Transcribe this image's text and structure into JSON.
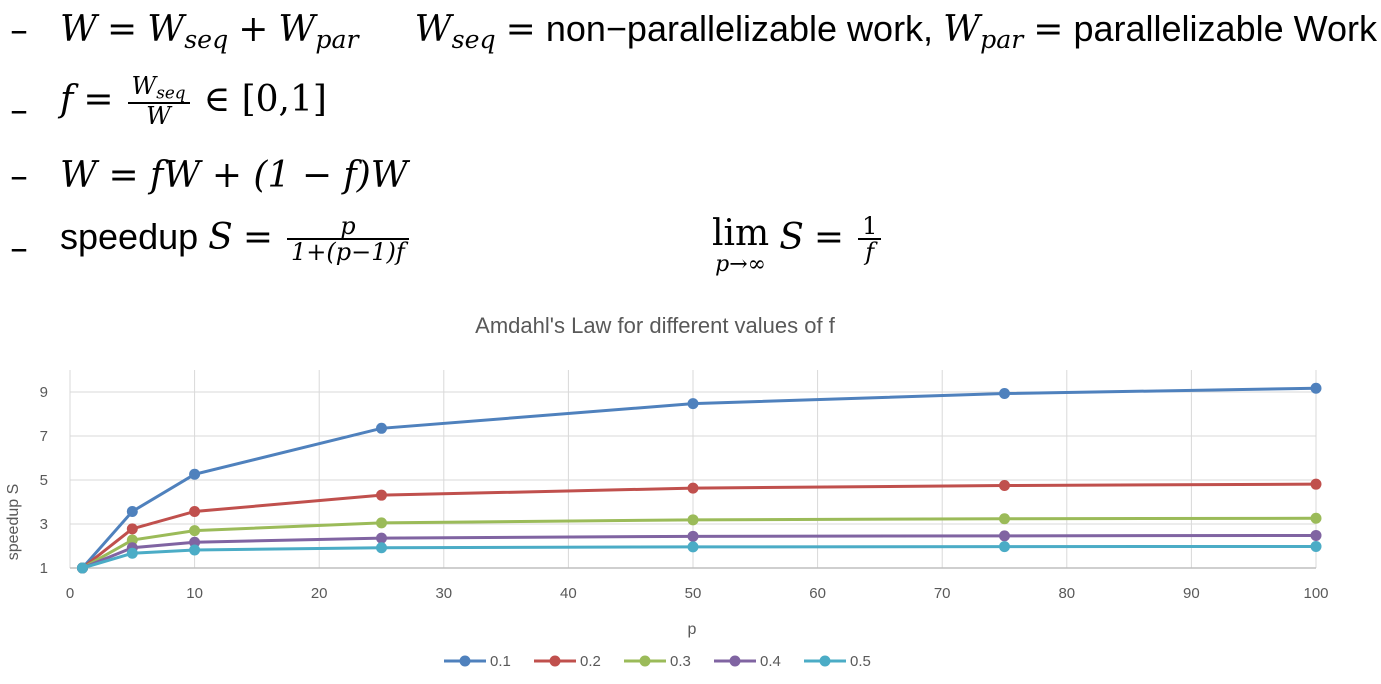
{
  "formulas": {
    "line1": {
      "lhs": "W",
      "eq": "=",
      "w_seq_base": "W",
      "w_seq_sub": "seq",
      "plus": "+",
      "w_par_base": "W",
      "w_par_sub": "par",
      "def_seq_base": "W",
      "def_seq_sub": "seq",
      "def_seq_text": "non−parallelizable work,",
      "def_par_base": "W",
      "def_par_sub": "par",
      "def_par_text": "parallelizable Work"
    },
    "line2": {
      "lhs": "f",
      "eq": "=",
      "num_base": "W",
      "num_sub": "seq",
      "den": "W",
      "rest": "∈ [0,1]"
    },
    "line3": {
      "text": "W = fW + (1 − f)W"
    },
    "line4": {
      "label": "speedup",
      "lhs": "S",
      "eq": "=",
      "num": "p",
      "den": "1+(p−1)f",
      "lim": "lim",
      "lim_sub": "p→∞",
      "lim_S": "S",
      "lim_eq": "=",
      "lim_num": "1",
      "lim_den": "f"
    },
    "bullet": "–"
  },
  "chart_data": {
    "type": "line",
    "title": "Amdahl's Law for different values of f",
    "xlabel": "p",
    "ylabel": "speedup S",
    "x": [
      1,
      5,
      10,
      25,
      50,
      75,
      100
    ],
    "xlim": [
      0,
      100
    ],
    "ylim": [
      1,
      10
    ],
    "xticks": [
      0,
      10,
      20,
      30,
      40,
      50,
      60,
      70,
      80,
      90,
      100
    ],
    "yticks": [
      1,
      3,
      5,
      7,
      9
    ],
    "grid": true,
    "legend_position": "bottom",
    "series": [
      {
        "name": "0.1",
        "color": "#4f81bd",
        "values": [
          1.0,
          3.57,
          5.26,
          7.35,
          8.47,
          8.93,
          9.17
        ]
      },
      {
        "name": "0.2",
        "color": "#c0504d",
        "values": [
          1.0,
          2.78,
          3.57,
          4.31,
          4.63,
          4.75,
          4.81
        ]
      },
      {
        "name": "0.3",
        "color": "#9bbb59",
        "values": [
          1.0,
          2.27,
          2.7,
          3.05,
          3.19,
          3.24,
          3.26
        ]
      },
      {
        "name": "0.4",
        "color": "#8064a2",
        "values": [
          1.0,
          1.92,
          2.17,
          2.36,
          2.44,
          2.46,
          2.48
        ]
      },
      {
        "name": "0.5",
        "color": "#4bacc6",
        "values": [
          1.0,
          1.67,
          1.82,
          1.92,
          1.96,
          1.97,
          1.98
        ]
      }
    ]
  }
}
